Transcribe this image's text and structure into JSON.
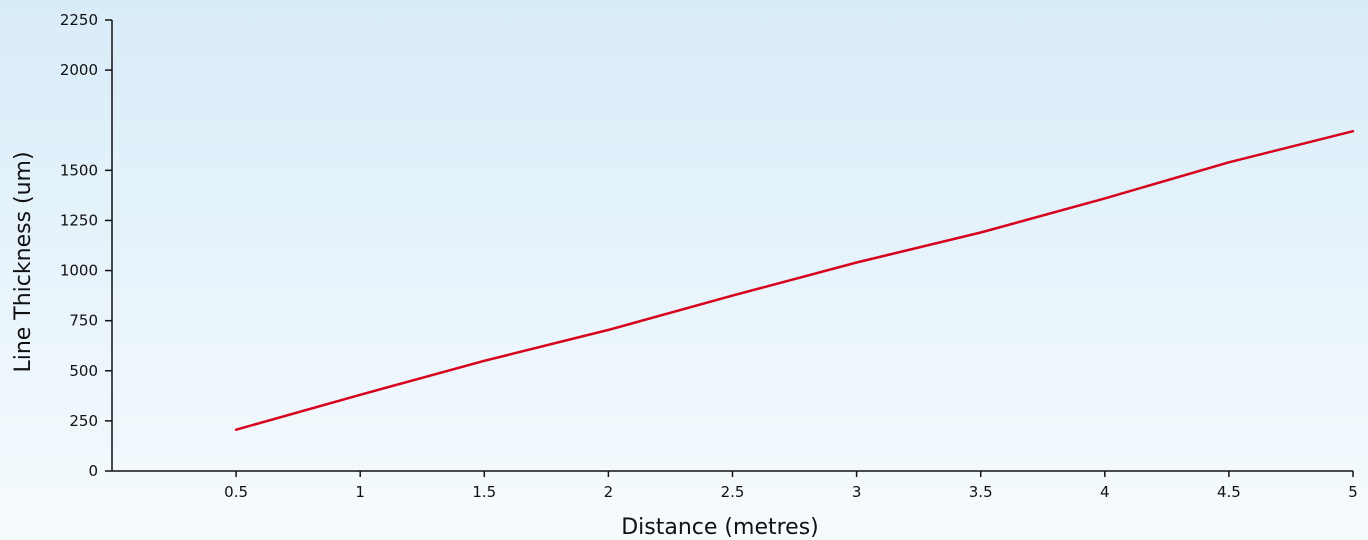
{
  "colors": {
    "line": "#d6001c",
    "axis": "#111111"
  },
  "chart_data": {
    "type": "line",
    "title": "",
    "xlabel": "Distance (metres)",
    "ylabel": "Line Thickness (um)",
    "xlim": [
      0,
      5
    ],
    "ylim": [
      0,
      2250
    ],
    "x_ticks": [
      0.5,
      1,
      1.5,
      2,
      2.5,
      3,
      3.5,
      4,
      4.5,
      5
    ],
    "y_ticks": [
      0,
      250,
      500,
      750,
      1000,
      1250,
      1500,
      2000,
      2250
    ],
    "grid": false,
    "series": [
      {
        "x": [
          0.5,
          1,
          1.5,
          2,
          2.5,
          3,
          3.5,
          4,
          4.5,
          5
        ],
        "y": [
          206,
          380,
          550,
          704,
          875,
          1040,
          1190,
          1360,
          1540,
          1695
        ]
      }
    ]
  }
}
